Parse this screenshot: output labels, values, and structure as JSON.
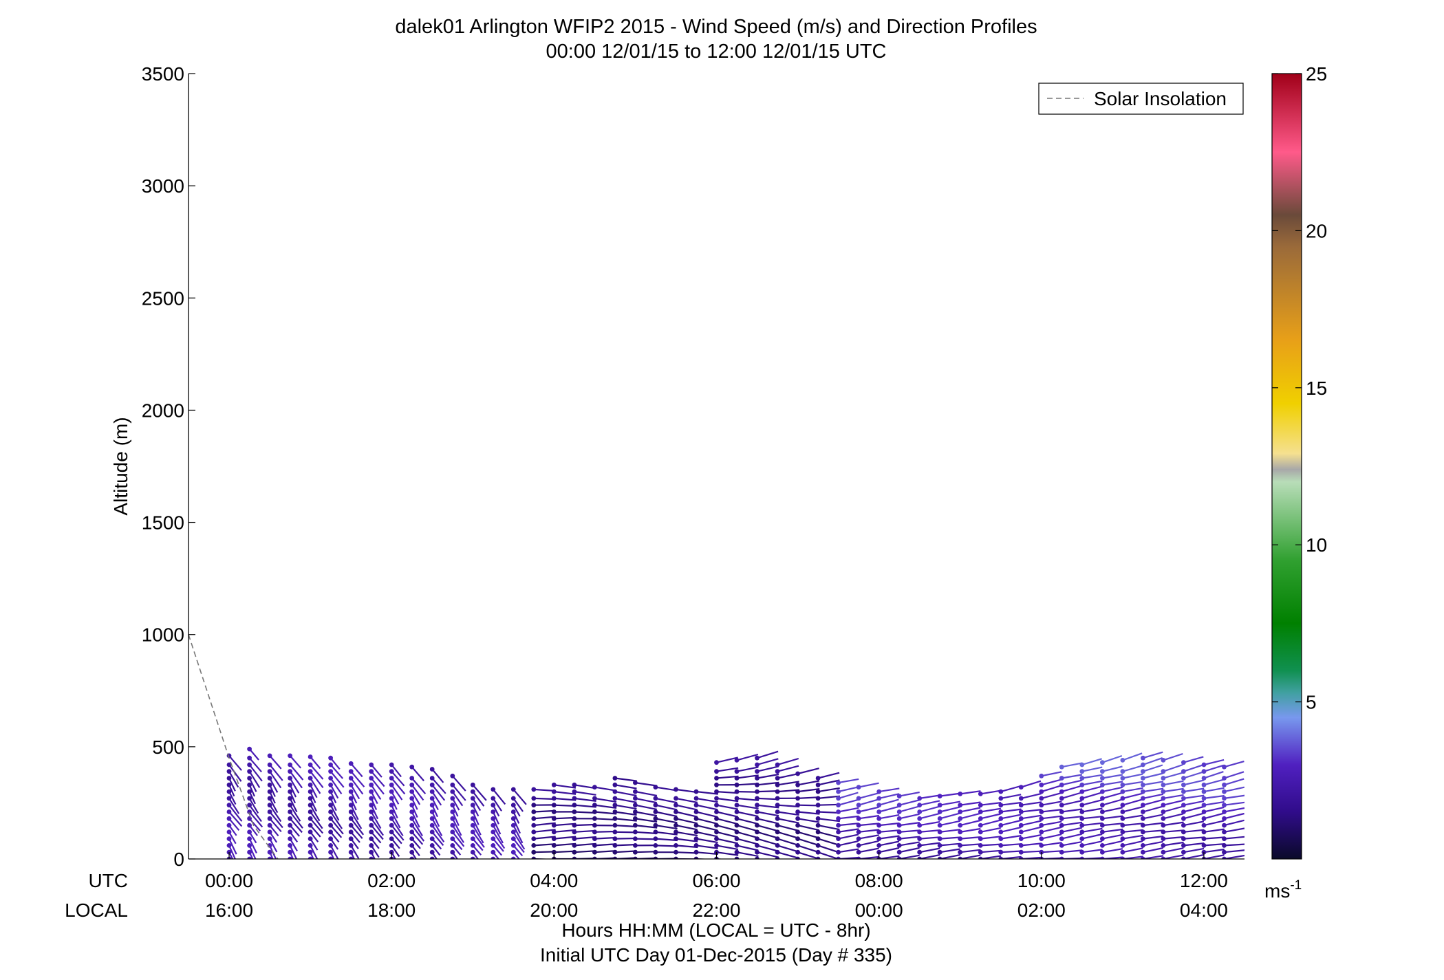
{
  "chart_data": {
    "type": "wind-profile",
    "title": "dalek01 Arlington WFIP2 2015 - Wind Speed (m/s) and Direction Profiles",
    "subtitle": "00:00 12/01/15 to 12:00 12/01/15  UTC",
    "ylabel": "Altitude (m)",
    "xlabel": "Hours HH:MM  (LOCAL = UTC - 8hr)",
    "xlabel2": "Initial UTC Day 01-Dec-2015 (Day # 335)",
    "xlim": [
      -0.5,
      12.5
    ],
    "ylim": [
      0,
      3500
    ],
    "y_ticks": [
      "0",
      "500",
      "1000",
      "1500",
      "2000",
      "2500",
      "3000",
      "3500"
    ],
    "x_row_labels": [
      "UTC",
      "LOCAL"
    ],
    "x_ticks_utc": [
      "00:00",
      "02:00",
      "04:00",
      "06:00",
      "08:00",
      "10:00",
      "12:00"
    ],
    "x_ticks_local": [
      "16:00",
      "18:00",
      "20:00",
      "22:00",
      "00:00",
      "02:00",
      "04:00"
    ],
    "x_tick_hours": [
      0,
      2,
      4,
      6,
      8,
      10,
      12
    ],
    "legend": {
      "label": "Solar Insolation",
      "placement": "top-right",
      "color": "#777777",
      "style": "dashed"
    },
    "solar_insolation": {
      "x": [
        -0.5,
        0.0,
        0.3,
        0.6
      ],
      "y": [
        1000,
        450,
        150,
        0
      ]
    },
    "profile_top_altitude": {
      "hours": [
        0.0,
        0.25,
        0.5,
        0.75,
        1.0,
        1.25,
        1.5,
        1.75,
        2.0,
        2.25,
        2.5,
        2.75,
        3.0,
        3.25,
        3.5,
        3.75,
        4.0,
        4.25,
        4.5,
        4.75,
        5.0,
        5.25,
        5.5,
        5.75,
        6.0,
        6.25,
        6.5,
        6.75,
        7.0,
        7.25,
        7.5,
        7.75,
        8.0,
        8.25,
        8.5,
        8.75,
        9.0,
        9.25,
        9.5,
        9.75,
        10.0,
        10.25,
        10.5,
        10.75,
        11.0,
        11.25,
        11.5,
        11.75,
        12.0,
        12.25
      ],
      "altitude": [
        460,
        490,
        460,
        460,
        455,
        450,
        425,
        420,
        420,
        410,
        400,
        370,
        330,
        310,
        310,
        310,
        330,
        330,
        320,
        360,
        340,
        320,
        310,
        300,
        430,
        440,
        450,
        420,
        380,
        360,
        340,
        320,
        300,
        280,
        270,
        280,
        290,
        290,
        300,
        320,
        370,
        410,
        420,
        430,
        440,
        450,
        440,
        430,
        420,
        410
      ]
    },
    "colorbar": {
      "label": "ms",
      "label_superscript": "-1",
      "range": [
        0,
        25
      ],
      "ticks": [
        5,
        10,
        15,
        20,
        25
      ],
      "gradient": [
        {
          "v": 0,
          "c": "#0a0a2a"
        },
        {
          "v": 1.5,
          "c": "#300c8a"
        },
        {
          "v": 3,
          "c": "#5020c0"
        },
        {
          "v": 4.5,
          "c": "#7898ee"
        },
        {
          "v": 5.3,
          "c": "#40a0a0"
        },
        {
          "v": 6.0,
          "c": "#109050"
        },
        {
          "v": 7.5,
          "c": "#008000"
        },
        {
          "v": 9.5,
          "c": "#30a030"
        },
        {
          "v": 12.0,
          "c": "#b8ddb8"
        },
        {
          "v": 12.4,
          "c": "#a8a8a8"
        },
        {
          "v": 12.9,
          "c": "#f5e090"
        },
        {
          "v": 14.5,
          "c": "#f0d000"
        },
        {
          "v": 16.5,
          "c": "#e8a018"
        },
        {
          "v": 19.5,
          "c": "#9a6a3a"
        },
        {
          "v": 20.5,
          "c": "#6a4a3a"
        },
        {
          "v": 22.5,
          "c": "#ff5a8a"
        },
        {
          "v": 25,
          "c": "#a00018"
        }
      ]
    }
  }
}
